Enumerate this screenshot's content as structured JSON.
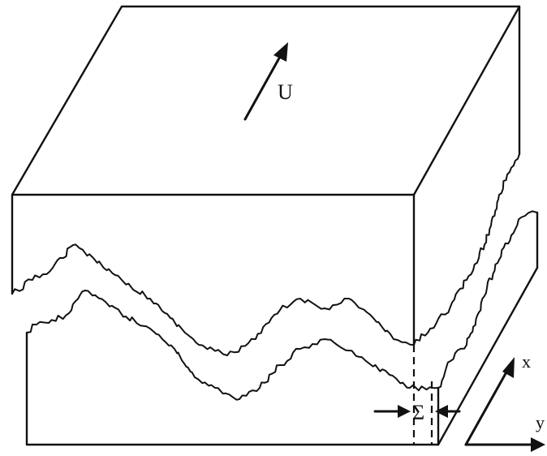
{
  "labels": {
    "velocity": "U",
    "aperture": "Σ",
    "x_axis": "x",
    "y_axis": "y"
  },
  "colors": {
    "stroke": "#111111",
    "background": "#ffffff"
  }
}
